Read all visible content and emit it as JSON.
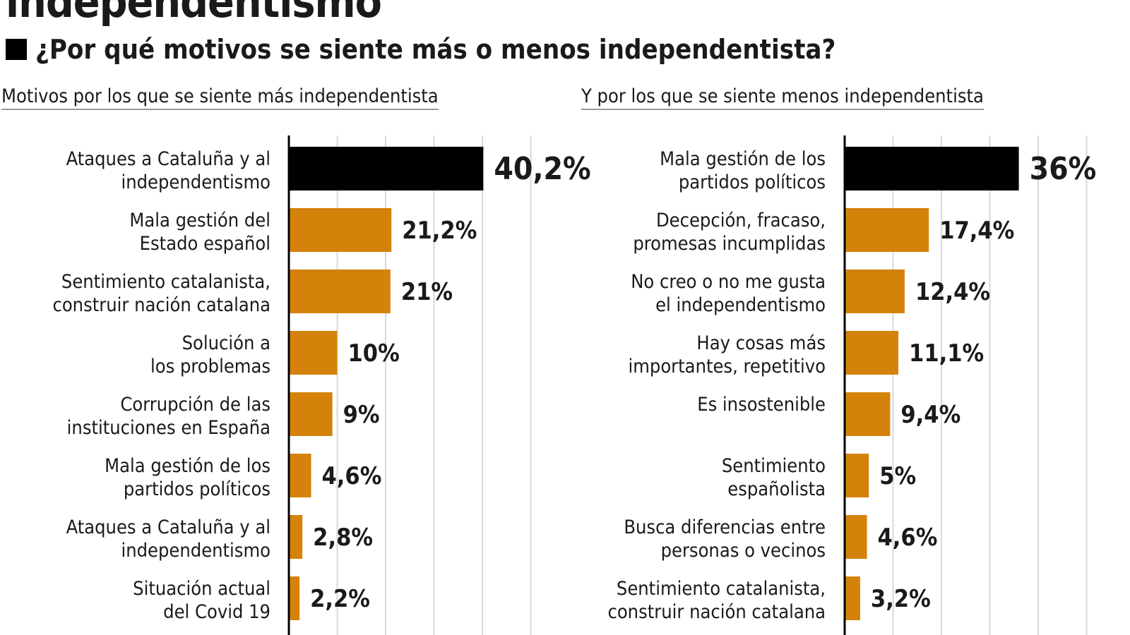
{
  "header": {
    "title": "independentismo",
    "subtitle": "¿Por qué motivos se siente más o menos independentista?"
  },
  "colors": {
    "highlight": "#000000",
    "bar": "#d4820a",
    "grid": "#d8d8d8"
  },
  "chart_data": [
    {
      "type": "bar",
      "orientation": "horizontal",
      "title": "Motivos por los que se siente más independentista",
      "xlim": [
        0,
        50
      ],
      "grid": true,
      "categories": [
        [
          "Ataques a Cataluña y al",
          "independentismo"
        ],
        [
          "Mala gestión del",
          "Estado español"
        ],
        [
          "Sentimiento catalanista,",
          "construir nación catalana"
        ],
        [
          "Solución a",
          "los problemas"
        ],
        [
          "Corrupción de las",
          "instituciones en España"
        ],
        [
          "Mala gestión de los",
          "partidos políticos"
        ],
        [
          "Ataques a Cataluña y al",
          "independentismo"
        ],
        [
          "Situación actual",
          "del Covid 19"
        ]
      ],
      "values": [
        40.2,
        21.2,
        21,
        10,
        9,
        4.6,
        2.8,
        2.2
      ],
      "labels": [
        "40,2%",
        "21,2%",
        "21%",
        "10%",
        "9%",
        "4,6%",
        "2,8%",
        "2,2%"
      ]
    },
    {
      "type": "bar",
      "orientation": "horizontal",
      "title": "Y por los que se siente menos independentista",
      "xlim": [
        0,
        50
      ],
      "grid": true,
      "categories": [
        [
          "Mala gestión de los",
          "partidos políticos"
        ],
        [
          "Decepción, fracaso,",
          "promesas incumplidas"
        ],
        [
          "No creo o no me gusta",
          "el independentismo"
        ],
        [
          "Hay cosas más",
          "importantes, repetitivo"
        ],
        [
          "Es insostenible"
        ],
        [
          "Sentimiento",
          "españolista"
        ],
        [
          "Busca diferencias entre",
          "personas o vecinos"
        ],
        [
          "Sentimiento catalanista,",
          "construir nación catalana"
        ]
      ],
      "values": [
        36,
        17.4,
        12.4,
        11.1,
        9.4,
        5,
        4.6,
        3.2
      ],
      "labels": [
        "36%",
        "17,4%",
        "12,4%",
        "11,1%",
        "9,4%",
        "5%",
        "4,6%",
        "3,2%"
      ]
    }
  ]
}
